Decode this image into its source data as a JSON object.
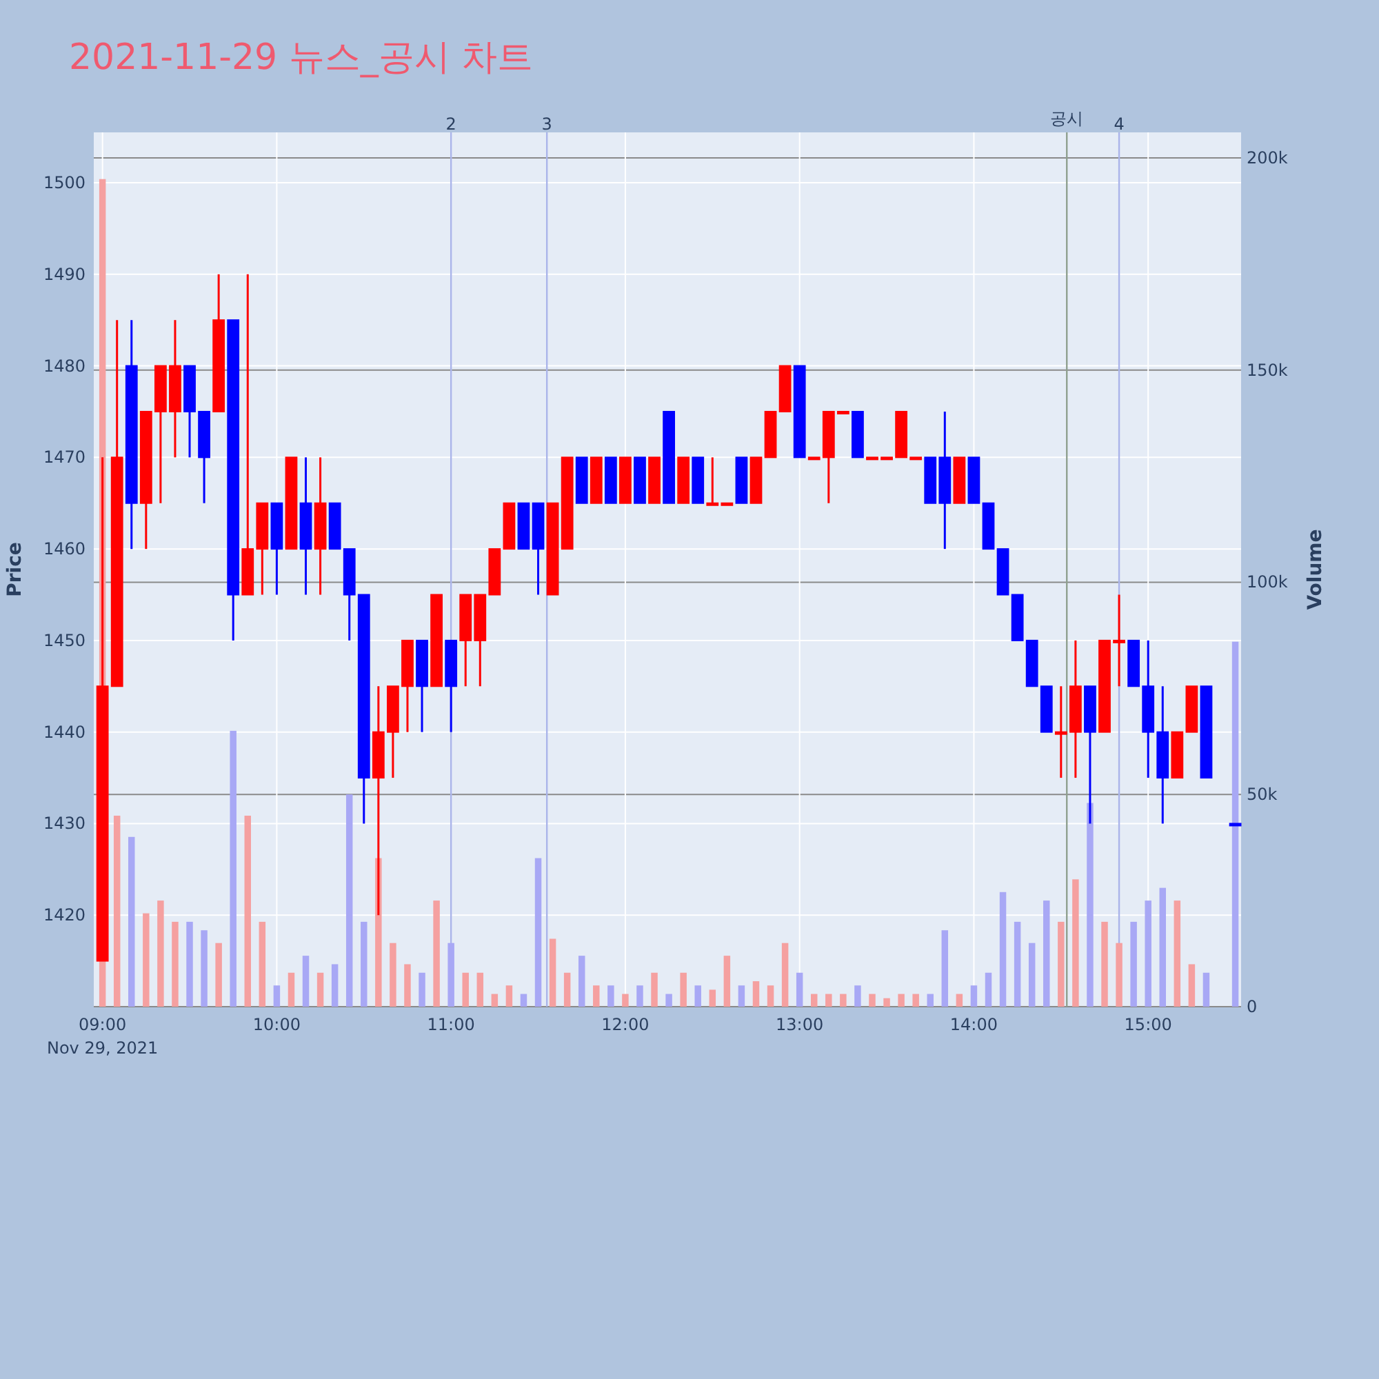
{
  "chart_data": {
    "type": "candlestick",
    "title": "2021-11-29 뉴스_공시 차트",
    "xlabel": null,
    "ylabel": "Price",
    "y2label": "Volume",
    "x": [
      "2021-11-29T09:00",
      "2021-11-29T09:05",
      "2021-11-29T09:10",
      "2021-11-29T09:15",
      "2021-11-29T09:20",
      "2021-11-29T09:25",
      "2021-11-29T09:30",
      "2021-11-29T09:35",
      "2021-11-29T09:40",
      "2021-11-29T09:45",
      "2021-11-29T09:50",
      "2021-11-29T09:55",
      "2021-11-29T10:00",
      "2021-11-29T10:05",
      "2021-11-29T10:10",
      "2021-11-29T10:15",
      "2021-11-29T10:20",
      "2021-11-29T10:25",
      "2021-11-29T10:30",
      "2021-11-29T10:35",
      "2021-11-29T10:40",
      "2021-11-29T10:45",
      "2021-11-29T10:50",
      "2021-11-29T10:55",
      "2021-11-29T11:00",
      "2021-11-29T11:05",
      "2021-11-29T11:10",
      "2021-11-29T11:15",
      "2021-11-29T11:20",
      "2021-11-29T11:25",
      "2021-11-29T11:30",
      "2021-11-29T11:35",
      "2021-11-29T11:40",
      "2021-11-29T11:45",
      "2021-11-29T11:50",
      "2021-11-29T11:55",
      "2021-11-29T12:00",
      "2021-11-29T12:05",
      "2021-11-29T12:10",
      "2021-11-29T12:15",
      "2021-11-29T12:20",
      "2021-11-29T12:25",
      "2021-11-29T12:30",
      "2021-11-29T12:35",
      "2021-11-29T12:40",
      "2021-11-29T12:45",
      "2021-11-29T12:50",
      "2021-11-29T12:55",
      "2021-11-29T13:00",
      "2021-11-29T13:05",
      "2021-11-29T13:10",
      "2021-11-29T13:15",
      "2021-11-29T13:20",
      "2021-11-29T13:25",
      "2021-11-29T13:30",
      "2021-11-29T13:35",
      "2021-11-29T13:40",
      "2021-11-29T13:45",
      "2021-11-29T13:50",
      "2021-11-29T13:55",
      "2021-11-29T14:00",
      "2021-11-29T14:05",
      "2021-11-29T14:10",
      "2021-11-29T14:15",
      "2021-11-29T14:20",
      "2021-11-29T14:25",
      "2021-11-29T14:30",
      "2021-11-29T14:35",
      "2021-11-29T14:40",
      "2021-11-29T14:45",
      "2021-11-29T14:50",
      "2021-11-29T14:55",
      "2021-11-29T15:00",
      "2021-11-29T15:05",
      "2021-11-29T15:10",
      "2021-11-29T15:15",
      "2021-11-29T15:20",
      "2021-11-29T15:30"
    ],
    "series": [
      {
        "type": "candlestick",
        "colors": [
          "#ff0000",
          "#ff0000",
          "#0000ff",
          "#ff0000",
          "#ff0000",
          "#ff0000",
          "#0000ff",
          "#0000ff",
          "#ff0000",
          "#0000ff",
          "#ff0000",
          "#ff0000",
          "#0000ff",
          "#ff0000",
          "#0000ff",
          "#ff0000",
          "#0000ff",
          "#0000ff",
          "#0000ff",
          "#ff0000",
          "#ff0000",
          "#ff0000",
          "#0000ff",
          "#ff0000",
          "#0000ff",
          "#ff0000",
          "#ff0000",
          "#ff0000",
          "#ff0000",
          "#0000ff",
          "#0000ff",
          "#ff0000",
          "#ff0000",
          "#0000ff",
          "#ff0000",
          "#0000ff",
          "#ff0000",
          "#0000ff",
          "#ff0000",
          "#0000ff",
          "#ff0000",
          "#0000ff",
          "#ff0000",
          "#ff0000",
          "#0000ff",
          "#ff0000",
          "#ff0000",
          "#ff0000",
          "#0000ff",
          "#ff0000",
          "#ff0000",
          "#ff0000",
          "#0000ff",
          "#ff0000",
          "#ff0000",
          "#ff0000",
          "#ff0000",
          "#0000ff",
          "#0000ff",
          "#ff0000",
          "#0000ff",
          "#0000ff",
          "#0000ff",
          "#0000ff",
          "#0000ff",
          "#0000ff",
          "#ff0000",
          "#ff0000",
          "#0000ff",
          "#ff0000",
          "#ff0000",
          "#0000ff",
          "#0000ff",
          "#0000ff",
          "#ff0000",
          "#ff0000",
          "#0000ff",
          "#0000ff"
        ],
        "ohlc": [
          [
            1415,
            1470,
            1415,
            1445
          ],
          [
            1445,
            1485,
            1445,
            1470
          ],
          [
            1480,
            1485,
            1460,
            1465
          ],
          [
            1465,
            1475,
            1460,
            1475
          ],
          [
            1475,
            1480,
            1465,
            1480
          ],
          [
            1475,
            1485,
            1470,
            1480
          ],
          [
            1480,
            1480,
            1470,
            1475
          ],
          [
            1475,
            1475,
            1465,
            1470
          ],
          [
            1475,
            1490,
            1475,
            1485
          ],
          [
            1485,
            1485,
            1450,
            1455
          ],
          [
            1455,
            1490,
            1455,
            1460
          ],
          [
            1460,
            1465,
            1455,
            1465
          ],
          [
            1465,
            1465,
            1455,
            1460
          ],
          [
            1460,
            1470,
            1460,
            1470
          ],
          [
            1465,
            1470,
            1455,
            1460
          ],
          [
            1460,
            1470,
            1455,
            1465
          ],
          [
            1465,
            1465,
            1460,
            1460
          ],
          [
            1460,
            1460,
            1450,
            1455
          ],
          [
            1455,
            1455,
            1430,
            1435
          ],
          [
            1435,
            1445,
            1420,
            1440
          ],
          [
            1440,
            1445,
            1435,
            1445
          ],
          [
            1445,
            1450,
            1440,
            1450
          ],
          [
            1450,
            1450,
            1440,
            1445
          ],
          [
            1445,
            1455,
            1445,
            1455
          ],
          [
            1450,
            1450,
            1440,
            1445
          ],
          [
            1450,
            1455,
            1445,
            1455
          ],
          [
            1450,
            1455,
            1445,
            1455
          ],
          [
            1455,
            1460,
            1455,
            1460
          ],
          [
            1460,
            1465,
            1460,
            1465
          ],
          [
            1465,
            1465,
            1460,
            1460
          ],
          [
            1465,
            1465,
            1455,
            1460
          ],
          [
            1455,
            1465,
            1455,
            1465
          ],
          [
            1460,
            1470,
            1460,
            1470
          ],
          [
            1470,
            1470,
            1465,
            1465
          ],
          [
            1465,
            1470,
            1465,
            1470
          ],
          [
            1470,
            1470,
            1465,
            1465
          ],
          [
            1465,
            1470,
            1465,
            1470
          ],
          [
            1470,
            1470,
            1465,
            1465
          ],
          [
            1465,
            1470,
            1465,
            1470
          ],
          [
            1475,
            1475,
            1465,
            1465
          ],
          [
            1465,
            1470,
            1465,
            1470
          ],
          [
            1470,
            1470,
            1465,
            1465
          ],
          [
            1465,
            1470,
            1465,
            1465
          ],
          [
            1465,
            1465,
            1465,
            1465
          ],
          [
            1470,
            1470,
            1465,
            1465
          ],
          [
            1465,
            1470,
            1465,
            1470
          ],
          [
            1470,
            1475,
            1470,
            1475
          ],
          [
            1475,
            1480,
            1475,
            1480
          ],
          [
            1480,
            1480,
            1470,
            1470
          ],
          [
            1470,
            1470,
            1470,
            1470
          ],
          [
            1470,
            1475,
            1465,
            1475
          ],
          [
            1475,
            1475,
            1475,
            1475
          ],
          [
            1475,
            1475,
            1470,
            1470
          ],
          [
            1470,
            1470,
            1470,
            1470
          ],
          [
            1470,
            1470,
            1470,
            1470
          ],
          [
            1470,
            1475,
            1470,
            1475
          ],
          [
            1470,
            1470,
            1470,
            1470
          ],
          [
            1470,
            1470,
            1465,
            1465
          ],
          [
            1470,
            1475,
            1460,
            1465
          ],
          [
            1465,
            1470,
            1465,
            1470
          ],
          [
            1470,
            1470,
            1465,
            1465
          ],
          [
            1465,
            1465,
            1460,
            1460
          ],
          [
            1460,
            1460,
            1455,
            1455
          ],
          [
            1455,
            1455,
            1450,
            1450
          ],
          [
            1450,
            1450,
            1445,
            1445
          ],
          [
            1445,
            1445,
            1440,
            1440
          ],
          [
            1440,
            1445,
            1435,
            1440
          ],
          [
            1440,
            1450,
            1435,
            1445
          ],
          [
            1445,
            1445,
            1430,
            1440
          ],
          [
            1440,
            1450,
            1440,
            1450
          ],
          [
            1450,
            1455,
            1445,
            1450
          ],
          [
            1450,
            1450,
            1445,
            1445
          ],
          [
            1445,
            1450,
            1435,
            1440
          ],
          [
            1440,
            1445,
            1430,
            1435
          ],
          [
            1435,
            1440,
            1435,
            1440
          ],
          [
            1440,
            1445,
            1440,
            1445
          ],
          [
            1445,
            1445,
            1435,
            1435
          ],
          [
            1430,
            1430,
            1430,
            1430
          ]
        ]
      },
      {
        "type": "bar",
        "axis": "y2",
        "colors": [
          "#f5a0a0",
          "#f5a0a0",
          "#a8a8f5",
          "#f5a0a0",
          "#f5a0a0",
          "#f5a0a0",
          "#a8a8f5",
          "#a8a8f5",
          "#f5a0a0",
          "#a8a8f5",
          "#f5a0a0",
          "#f5a0a0",
          "#a8a8f5",
          "#f5a0a0",
          "#a8a8f5",
          "#f5a0a0",
          "#a8a8f5",
          "#a8a8f5",
          "#a8a8f5",
          "#f5a0a0",
          "#f5a0a0",
          "#f5a0a0",
          "#a8a8f5",
          "#f5a0a0",
          "#a8a8f5",
          "#f5a0a0",
          "#f5a0a0",
          "#f5a0a0",
          "#f5a0a0",
          "#a8a8f5",
          "#a8a8f5",
          "#f5a0a0",
          "#f5a0a0",
          "#a8a8f5",
          "#f5a0a0",
          "#a8a8f5",
          "#f5a0a0",
          "#a8a8f5",
          "#f5a0a0",
          "#a8a8f5",
          "#f5a0a0",
          "#a8a8f5",
          "#f5a0a0",
          "#f5a0a0",
          "#a8a8f5",
          "#f5a0a0",
          "#f5a0a0",
          "#f5a0a0",
          "#a8a8f5",
          "#f5a0a0",
          "#f5a0a0",
          "#f5a0a0",
          "#a8a8f5",
          "#f5a0a0",
          "#f5a0a0",
          "#f5a0a0",
          "#f5a0a0",
          "#a8a8f5",
          "#a8a8f5",
          "#f5a0a0",
          "#a8a8f5",
          "#a8a8f5",
          "#a8a8f5",
          "#a8a8f5",
          "#a8a8f5",
          "#a8a8f5",
          "#f5a0a0",
          "#f5a0a0",
          "#a8a8f5",
          "#f5a0a0",
          "#f5a0a0",
          "#a8a8f5",
          "#a8a8f5",
          "#a8a8f5",
          "#f5a0a0",
          "#f5a0a0",
          "#a8a8f5",
          "#a8a8f5"
        ],
        "values": [
          195000,
          45000,
          40000,
          22000,
          25000,
          20000,
          20000,
          18000,
          15000,
          65000,
          45000,
          20000,
          5000,
          8000,
          12000,
          8000,
          10000,
          50000,
          20000,
          35000,
          15000,
          10000,
          8000,
          25000,
          15000,
          8000,
          8000,
          3000,
          5000,
          3000,
          35000,
          16000,
          8000,
          12000,
          5000,
          5000,
          3000,
          5000,
          8000,
          3000,
          8000,
          5000,
          4000,
          12000,
          5000,
          6000,
          5000,
          15000,
          8000,
          3000,
          3000,
          3000,
          5000,
          3000,
          2000,
          3000,
          3000,
          3000,
          18000,
          3000,
          5000,
          8000,
          27000,
          20000,
          15000,
          25000,
          20000,
          30000,
          48000,
          20000,
          15000,
          20000,
          25000,
          28000,
          25000,
          10000,
          8000,
          86000
        ]
      }
    ],
    "xlim": [
      "2021-11-29T08:57",
      "2021-11-29T15:32"
    ],
    "xticks": [
      {
        "value": "2021-11-29T09:00",
        "label": "09:00\nNov 29, 2021"
      },
      {
        "value": "2021-11-29T10:00",
        "label": "10:00"
      },
      {
        "value": "2021-11-29T11:00",
        "label": "11:00"
      },
      {
        "value": "2021-11-29T12:00",
        "label": "12:00"
      },
      {
        "value": "2021-11-29T13:00",
        "label": "13:00"
      },
      {
        "value": "2021-11-29T14:00",
        "label": "14:00"
      },
      {
        "value": "2021-11-29T15:00",
        "label": "15:00"
      }
    ],
    "ylim": [
      1410,
      1505.5
    ],
    "yticks": [
      1420,
      1430,
      1440,
      1450,
      1460,
      1470,
      1480,
      1490,
      1500
    ],
    "y2lim": [
      0,
      206000
    ],
    "y2ticks": [
      {
        "value": 0,
        "label": "0"
      },
      {
        "value": 50000,
        "label": "50k"
      },
      {
        "value": 100000,
        "label": "100k"
      },
      {
        "value": 150000,
        "label": "150k"
      },
      {
        "value": 200000,
        "label": "200k"
      }
    ],
    "ref_lines": [
      {
        "axis": "x",
        "value": "2021-11-29T11:00",
        "label": "2",
        "color": "#aab4ea"
      },
      {
        "axis": "x",
        "value": "2021-11-29T11:33",
        "label": "3",
        "color": "#aab4ea"
      },
      {
        "axis": "x",
        "value": "2021-11-29T14:32",
        "label": "공시",
        "color": "#8fa08f"
      },
      {
        "axis": "x",
        "value": "2021-11-29T14:50",
        "label": "4",
        "color": "#aab4ea"
      }
    ],
    "grid": true
  }
}
